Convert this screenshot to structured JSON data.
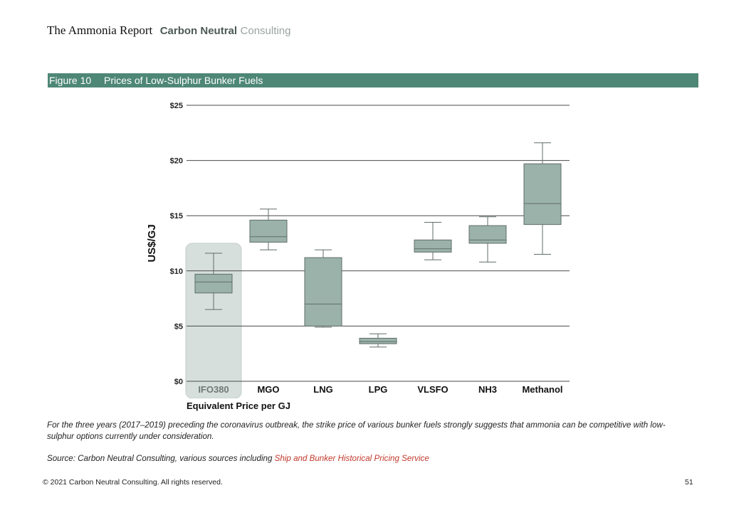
{
  "header": {
    "report_title": "The Ammonia Report",
    "brand_bold": "Carbon Neutral",
    "brand_light": "Consulting"
  },
  "figure": {
    "number": "Figure 10",
    "title": "Prices of Low-Sulphur Bunker Fuels"
  },
  "chart_data": {
    "type": "box",
    "title": "Prices of Low-Sulphur Bunker Fuels",
    "ylabel": "US$/GJ",
    "xlabel": "Equivalent Price per GJ",
    "ylim": [
      0,
      25
    ],
    "yticks": [
      0,
      5,
      10,
      15,
      20,
      25
    ],
    "ytick_labels": [
      "$0",
      "$5",
      "$10",
      "$15",
      "$20",
      "$25"
    ],
    "grid": true,
    "highlighted_category": "IFO380",
    "categories": [
      "IFO380",
      "MGO",
      "LNG",
      "LPG",
      "VLSFO",
      "NH3",
      "Methanol"
    ],
    "series": [
      {
        "min": 6.5,
        "q1": 8.0,
        "median": 9.0,
        "q3": 9.7,
        "max": 11.6
      },
      {
        "min": 11.9,
        "q1": 12.6,
        "median": 13.1,
        "q3": 14.6,
        "max": 15.6
      },
      {
        "min": 4.9,
        "q1": 5.0,
        "median": 7.0,
        "q3": 11.2,
        "max": 11.9
      },
      {
        "min": 3.1,
        "q1": 3.4,
        "median": 3.6,
        "q3": 3.9,
        "max": 4.3
      },
      {
        "min": 11.0,
        "q1": 11.7,
        "median": 12.0,
        "q3": 12.8,
        "max": 14.4
      },
      {
        "min": 10.8,
        "q1": 12.5,
        "median": 12.8,
        "q3": 14.1,
        "max": 14.9
      },
      {
        "min": 11.5,
        "q1": 14.2,
        "median": 16.1,
        "q3": 19.7,
        "max": 21.6
      }
    ]
  },
  "caption": "For the three years (2017–2019) preceding the coronavirus outbreak, the strike price of various bunker fuels strongly suggests that ammonia can be competitive with low-sulphur options currently under consideration.",
  "source": {
    "prefix": "Source: Carbon Neutral Consulting, various sources including ",
    "link": "Ship and Bunker Historical Pricing Service"
  },
  "footer": {
    "copyright": "© 2021 Carbon Neutral Consulting. All rights reserved.",
    "page_number": "51"
  },
  "colors": {
    "figure_bar": "#4e8775",
    "box_fill": "#9bb2aa",
    "box_stroke": "#5f6e69",
    "highlight_fill": "#d6dfdc",
    "highlight_tick_label": "#6e7a77",
    "link": "#c0392b"
  }
}
